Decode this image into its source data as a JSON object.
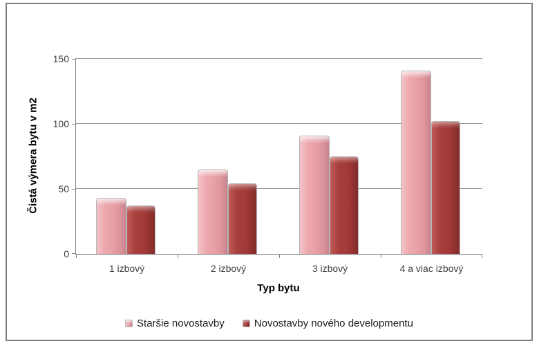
{
  "chart_data": {
    "type": "bar",
    "title": "",
    "categories": [
      "1 izbový",
      "2 izbový",
      "3 izbový",
      "4 a viac izbový"
    ],
    "series": [
      {
        "name": "Staršie novostavby",
        "color": "#e8a0a8",
        "values": [
          43,
          65,
          91,
          141
        ]
      },
      {
        "name": "Novostavby nového developmentu",
        "color": "#a13a38",
        "values": [
          37,
          54,
          75,
          102
        ]
      }
    ],
    "xlabel": "Typ bytu",
    "ylabel": "Čistá výmera bytu v m2",
    "ylim": [
      0,
      150
    ],
    "yticks": [
      0,
      50,
      100,
      150
    ],
    "grid": "horizontal-gridlines",
    "legend_position": "bottom-center"
  },
  "colors": {
    "background": "#ffffff",
    "frame_border": "#7e7e7e",
    "axis_line": "#808080",
    "gridline": "#999999",
    "tick_label": "#3f3f3f",
    "axis_title": "#000000",
    "series1_fill": "#e8a0a8",
    "series2_fill": "#a13a38"
  }
}
